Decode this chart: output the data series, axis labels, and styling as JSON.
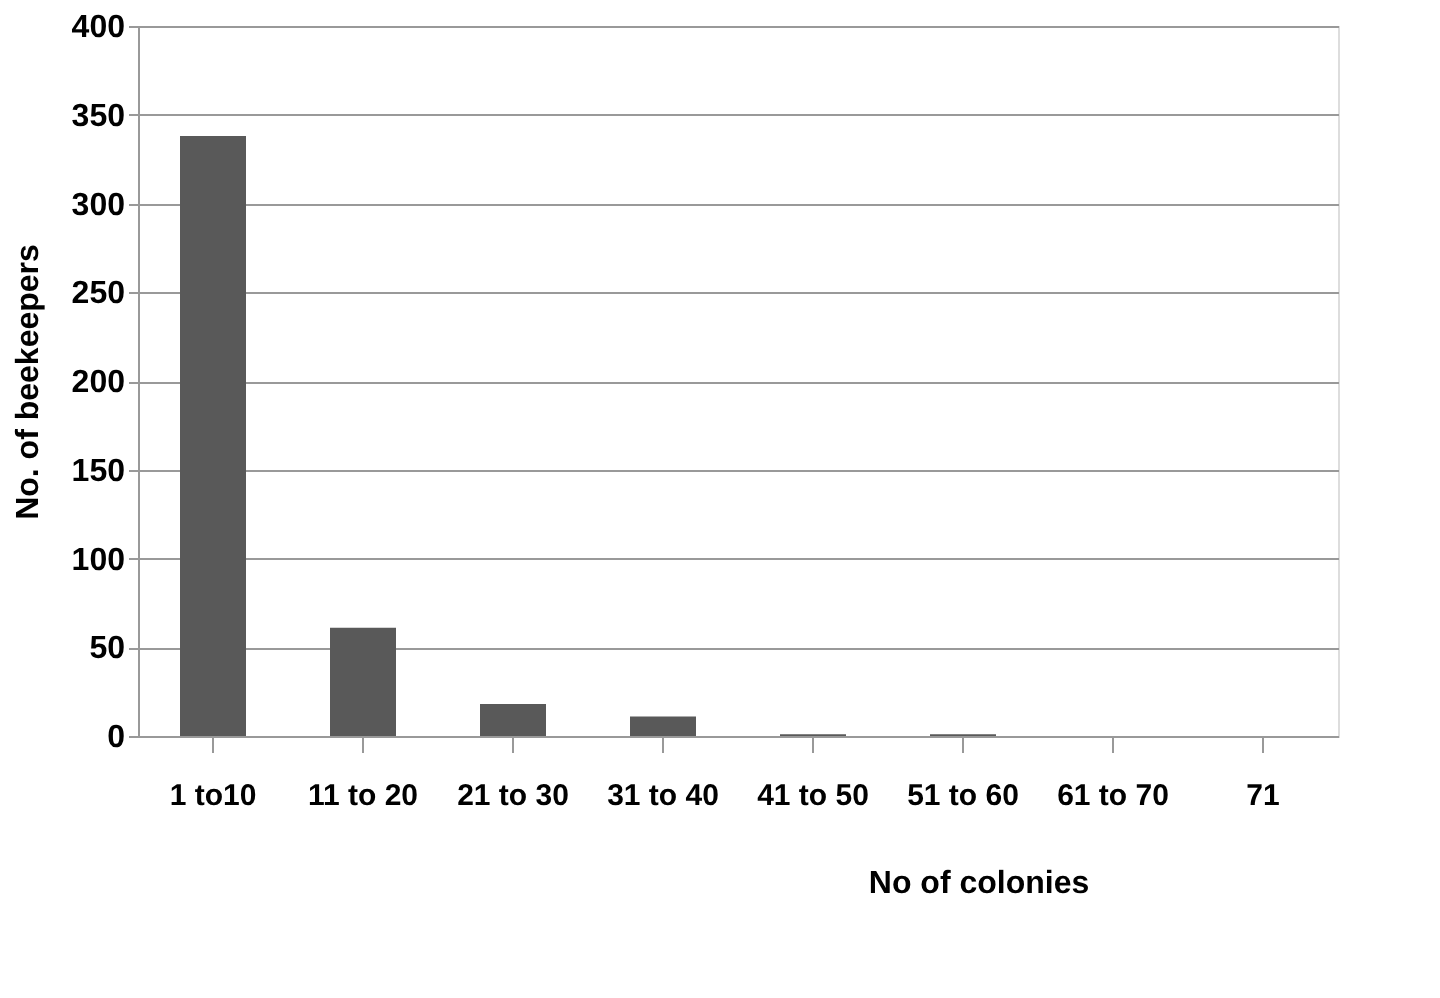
{
  "chart_data": {
    "type": "bar",
    "xlabel": "No of colonies",
    "ylabel": "No. of beekeepers",
    "categories": [
      "1 to10",
      "11 to 20",
      "21 to 30",
      "31 to 40",
      "41 to 50",
      "51 to 60",
      "61 to 70",
      "71"
    ],
    "values": [
      338,
      61,
      18,
      11,
      1,
      1,
      0,
      0
    ],
    "color": "#595959",
    "ylim": [
      0,
      400
    ],
    "yticks": [
      0,
      50,
      100,
      150,
      200,
      250,
      300,
      350,
      400
    ],
    "grid": "y"
  }
}
